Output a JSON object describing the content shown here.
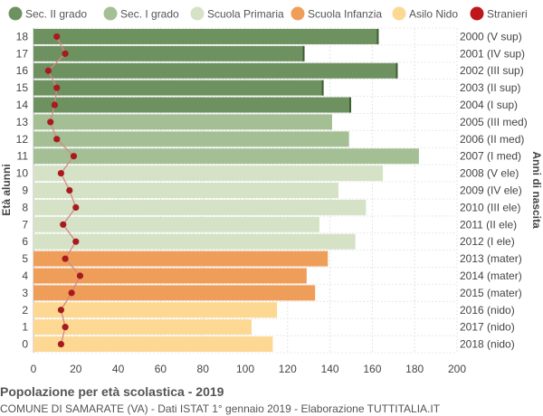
{
  "chart_data": {
    "type": "bar",
    "orientation": "horizontal",
    "title": "Popolazione per età scolastica - 2019",
    "subtitle": "COMUNE DI SAMARATE (VA) - Dati ISTAT 1° gennaio 2019 - Elaborazione TUTTITALIA.IT",
    "ylabel_left": "Età alunni",
    "ylabel_right": "Anni di nascita",
    "xlim": [
      0,
      200
    ],
    "xticks": [
      0,
      20,
      40,
      60,
      80,
      100,
      120,
      140,
      160,
      180,
      200
    ],
    "grid": true,
    "legend_position": "top",
    "legend": [
      {
        "name": "Sec. II grado",
        "color": "#6e9160",
        "marker": "circle"
      },
      {
        "name": "Sec. I grado",
        "color": "#a3bf93",
        "marker": "circle"
      },
      {
        "name": "Scuola Primaria",
        "color": "#d5e2c6",
        "marker": "circle"
      },
      {
        "name": "Scuola Infanzia",
        "color": "#ef9e5a",
        "marker": "circle"
      },
      {
        "name": "Asilo Nido",
        "color": "#fcd893",
        "marker": "circle"
      },
      {
        "name": "Stranieri",
        "color": "#c0161a",
        "marker": "circle"
      }
    ],
    "rows": [
      {
        "age": "18",
        "birth": "2000 (V sup)",
        "value": 163,
        "stranieri": 11,
        "group": "Sec. II grado"
      },
      {
        "age": "17",
        "birth": "2001 (IV sup)",
        "value": 128,
        "stranieri": 15,
        "group": "Sec. II grado"
      },
      {
        "age": "16",
        "birth": "2002 (III sup)",
        "value": 172,
        "stranieri": 7,
        "group": "Sec. II grado"
      },
      {
        "age": "15",
        "birth": "2003 (II sup)",
        "value": 137,
        "stranieri": 11,
        "group": "Sec. II grado"
      },
      {
        "age": "14",
        "birth": "2004 (I sup)",
        "value": 150,
        "stranieri": 10,
        "group": "Sec. II grado"
      },
      {
        "age": "13",
        "birth": "2005 (III med)",
        "value": 141,
        "stranieri": 8,
        "group": "Sec. I grado"
      },
      {
        "age": "12",
        "birth": "2006 (II med)",
        "value": 149,
        "stranieri": 11,
        "group": "Sec. I grado"
      },
      {
        "age": "11",
        "birth": "2007 (I med)",
        "value": 182,
        "stranieri": 19,
        "group": "Sec. I grado"
      },
      {
        "age": "10",
        "birth": "2008 (V ele)",
        "value": 165,
        "stranieri": 13,
        "group": "Scuola Primaria"
      },
      {
        "age": "9",
        "birth": "2009 (IV ele)",
        "value": 144,
        "stranieri": 17,
        "group": "Scuola Primaria"
      },
      {
        "age": "8",
        "birth": "2010 (III ele)",
        "value": 157,
        "stranieri": 20,
        "group": "Scuola Primaria"
      },
      {
        "age": "7",
        "birth": "2011 (II ele)",
        "value": 135,
        "stranieri": 14,
        "group": "Scuola Primaria"
      },
      {
        "age": "6",
        "birth": "2012 (I ele)",
        "value": 152,
        "stranieri": 20,
        "group": "Scuola Primaria"
      },
      {
        "age": "5",
        "birth": "2013 (mater)",
        "value": 139,
        "stranieri": 15,
        "group": "Scuola Infanzia"
      },
      {
        "age": "4",
        "birth": "2014 (mater)",
        "value": 129,
        "stranieri": 22,
        "group": "Scuola Infanzia"
      },
      {
        "age": "3",
        "birth": "2015 (mater)",
        "value": 133,
        "stranieri": 18,
        "group": "Scuola Infanzia"
      },
      {
        "age": "2",
        "birth": "2016 (nido)",
        "value": 115,
        "stranieri": 13,
        "group": "Asilo Nido"
      },
      {
        "age": "1",
        "birth": "2017 (nido)",
        "value": 103,
        "stranieri": 15,
        "group": "Asilo Nido"
      },
      {
        "age": "0",
        "birth": "2018 (nido)",
        "value": 113,
        "stranieri": 13,
        "group": "Asilo Nido"
      }
    ]
  }
}
